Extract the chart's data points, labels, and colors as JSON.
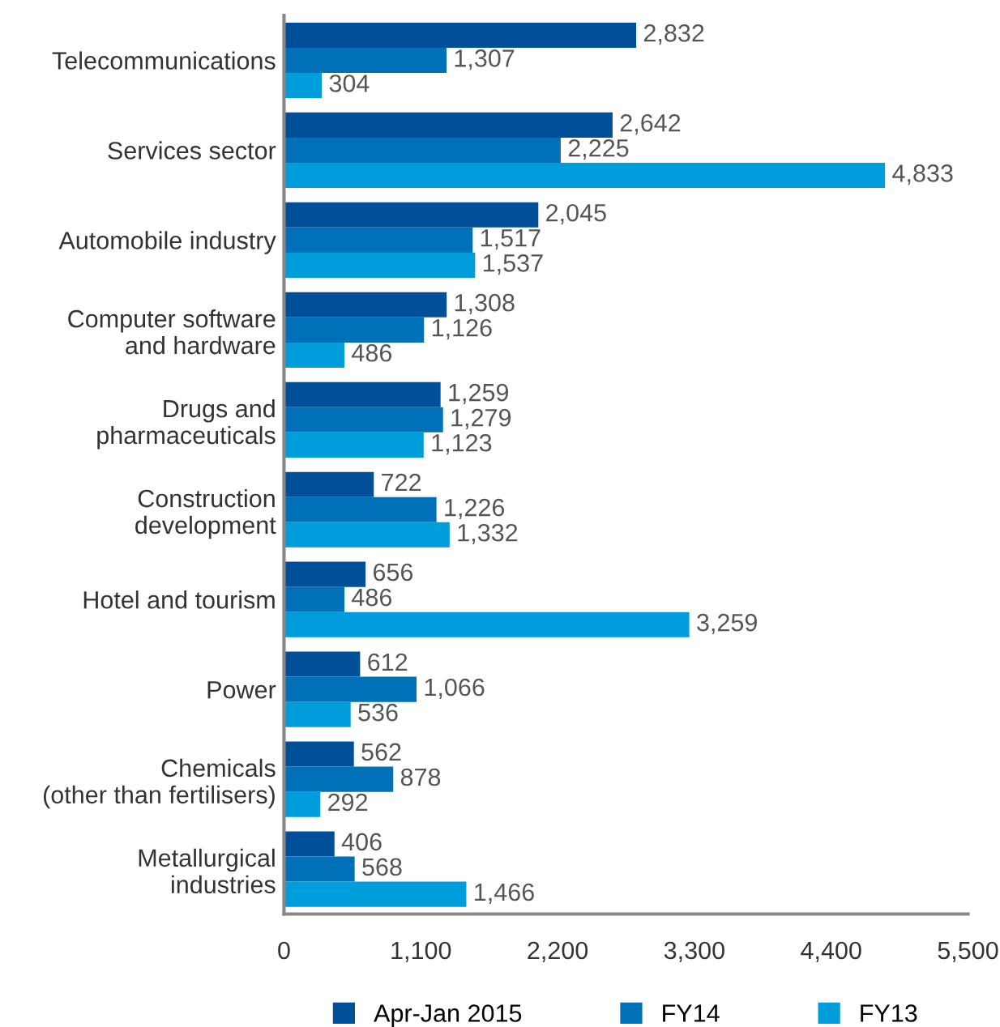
{
  "chart_data": {
    "type": "bar",
    "orientation": "horizontal",
    "categories": [
      "Telecommunications",
      "Services sector",
      "Automobile industry",
      "Computer software\nand hardware",
      "Drugs and\npharmaceuticals",
      "Construction\ndevelopment",
      "Hotel and tourism",
      "Power",
      "Chemicals\n(other than fertilisers)",
      "Metallurgical\nindustries"
    ],
    "series": [
      {
        "name": "Apr-Jan 2015",
        "color": "#004f98",
        "values": [
          2832,
          2642,
          2045,
          1308,
          1259,
          722,
          656,
          612,
          562,
          406
        ],
        "value_labels": [
          "2,832",
          "2,642",
          "2,045",
          "1,308",
          "1,259",
          "722",
          "656",
          "612",
          "562",
          "406"
        ]
      },
      {
        "name": "FY14",
        "color": "#0070b8",
        "values": [
          1307,
          2225,
          1517,
          1126,
          1279,
          1226,
          486,
          1066,
          878,
          568
        ],
        "value_labels": [
          "1,307",
          "2,225",
          "1,517",
          "1,126",
          "1,279",
          "1,226",
          "486",
          "1,066",
          "878",
          "568"
        ]
      },
      {
        "name": "FY13",
        "color": "#009ddc",
        "values": [
          304,
          4833,
          1537,
          486,
          1123,
          1332,
          3259,
          536,
          292,
          1466
        ],
        "value_labels": [
          "304",
          "4,833",
          "1,537",
          "486",
          "1,123",
          "1,332",
          "3,259",
          "536",
          "292",
          "1,466"
        ]
      }
    ],
    "xlim": [
      0,
      5500
    ],
    "xticks": [
      {
        "value": 0,
        "label": "0"
      },
      {
        "value": 1100,
        "label": "1,100"
      },
      {
        "value": 2200,
        "label": "2,200"
      },
      {
        "value": 3300,
        "label": "3,300"
      },
      {
        "value": 4400,
        "label": "4,400"
      },
      {
        "value": 5500,
        "label": "5,500"
      }
    ],
    "grid": false,
    "legend": "bottom"
  }
}
